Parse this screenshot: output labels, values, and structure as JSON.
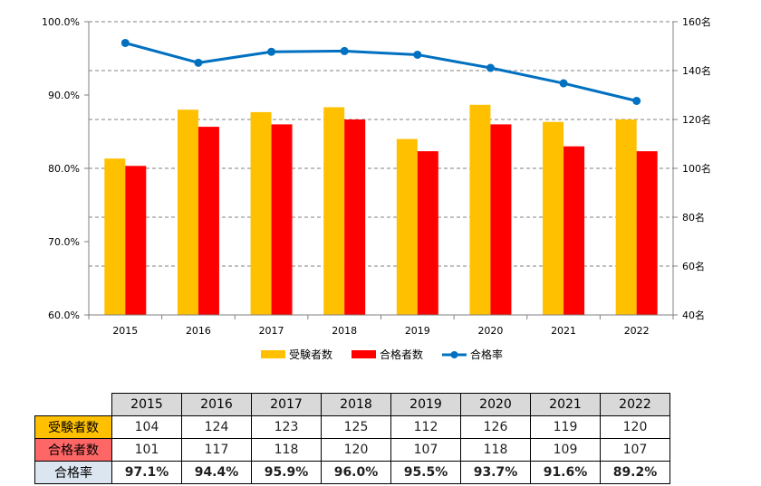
{
  "chart_data": {
    "type": "bar+line",
    "categories": [
      "2015",
      "2016",
      "2017",
      "2018",
      "2019",
      "2020",
      "2021",
      "2022"
    ],
    "left_axis": {
      "min": 60,
      "max": 100,
      "step": 10,
      "ticks": [
        "60.0%",
        "70.0%",
        "80.0%",
        "90.0%",
        "100.0%"
      ]
    },
    "right_axis": {
      "min": 40,
      "max": 160,
      "step": 20,
      "ticks": [
        "40名",
        "60名",
        "80名",
        "100名",
        "120名",
        "140名",
        "160名"
      ]
    },
    "grid": "dashed-horizontal",
    "legend_position": "bottom",
    "series": [
      {
        "name": "受験者数",
        "type": "bar",
        "axis": "right",
        "color": "#ffc000",
        "values": [
          104,
          124,
          123,
          125,
          112,
          126,
          119,
          120
        ]
      },
      {
        "name": "合格者数",
        "type": "bar",
        "axis": "right",
        "color": "#ff0000",
        "values": [
          101,
          117,
          118,
          120,
          107,
          118,
          109,
          107
        ]
      },
      {
        "name": "合格率",
        "type": "line",
        "axis": "left",
        "color": "#0070c0",
        "values": [
          97.1,
          94.4,
          95.9,
          96.0,
          95.5,
          93.7,
          91.6,
          89.2
        ]
      }
    ]
  },
  "table": {
    "years": [
      "2015",
      "2016",
      "2017",
      "2018",
      "2019",
      "2020",
      "2021",
      "2022"
    ],
    "rows": [
      {
        "label": "受験者数",
        "values": [
          "104",
          "124",
          "123",
          "125",
          "112",
          "126",
          "119",
          "120"
        ]
      },
      {
        "label": "合格者数",
        "values": [
          "101",
          "117",
          "118",
          "120",
          "107",
          "118",
          "109",
          "107"
        ]
      },
      {
        "label": "合格率",
        "values": [
          "97.1%",
          "94.4%",
          "95.9%",
          "96.0%",
          "95.5%",
          "93.7%",
          "91.6%",
          "89.2%"
        ]
      }
    ]
  }
}
